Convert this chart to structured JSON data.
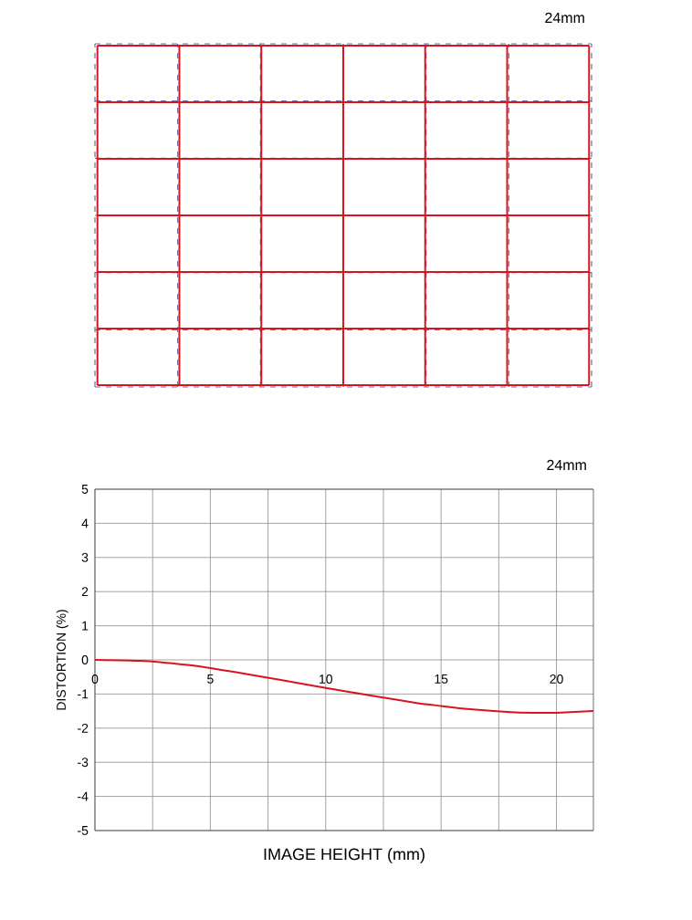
{
  "chart_data": [
    {
      "type": "other",
      "title": "24mm"
    },
    {
      "type": "line",
      "title": "24mm",
      "xlabel": "IMAGE HEIGHT (mm)",
      "ylabel": "DISTORTION (%)",
      "xlim": [
        0,
        21.6
      ],
      "ylim": [
        -5,
        5
      ],
      "xticks": [
        0,
        {
          "value": 2.5,
          "label": null
        },
        5,
        {
          "value": 7.5,
          "label": null
        },
        10,
        {
          "value": 12.5,
          "label": null
        },
        15,
        {
          "value": 17.5,
          "label": null
        },
        20
      ],
      "yticks": [
        -5,
        -4,
        -3,
        -2,
        -1,
        0,
        1,
        2,
        3,
        4,
        5
      ],
      "grid": true,
      "series": [
        {
          "color": "#d9141e",
          "x": [
            0,
            2,
            4,
            5,
            6,
            8,
            10,
            12,
            14,
            15,
            16,
            18,
            19,
            20,
            21.6
          ],
          "values": [
            0,
            -0.03,
            -0.15,
            -0.24,
            -0.35,
            -0.58,
            -0.82,
            -1.05,
            -1.27,
            -1.35,
            -1.43,
            -1.53,
            -1.55,
            -1.55,
            -1.5
          ]
        }
      ]
    }
  ]
}
